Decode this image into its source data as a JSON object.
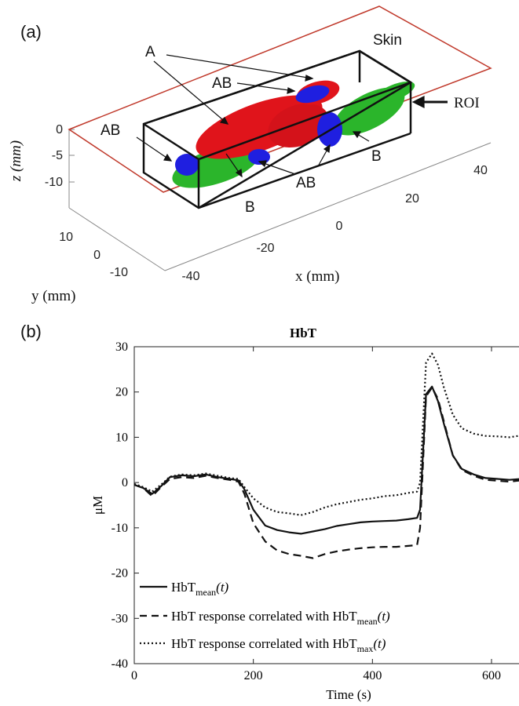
{
  "panel_a": {
    "label": "(a)",
    "skin_label": "Skin",
    "roi_label": "ROI",
    "region_labels": [
      "A",
      "AB",
      "AB",
      "AB",
      "B",
      "B"
    ],
    "z_axis": {
      "label": "z (mm)",
      "ticks": [
        "0",
        "-5",
        "-10"
      ]
    },
    "y_axis": {
      "label": "y (mm)",
      "ticks": [
        "10",
        "0",
        "-10"
      ]
    },
    "x_axis": {
      "label": "x (mm)",
      "ticks": [
        "-40",
        "-20",
        "0",
        "20",
        "40"
      ]
    },
    "colors": {
      "A": "#e0141b",
      "AB": "#1f1fe0",
      "B": "#2bb52b",
      "skin": "#c0392b",
      "roi": "#111111"
    }
  },
  "panel_b": {
    "label": "(b)",
    "legend": [
      {
        "name": "HbT",
        "sub": "mean",
        "suffix": "(t)",
        "style": "solid"
      },
      {
        "name": "HbT response correlated with HbT",
        "sub": "mean",
        "suffix": "(t)",
        "style": "dashed"
      },
      {
        "name": "HbT response correlated with HbT",
        "sub": "max",
        "suffix": "(t)",
        "style": "dotted"
      }
    ]
  },
  "chart_data": {
    "type": "line",
    "title": "HbT",
    "xlabel": "Time (s)",
    "ylabel": "μM",
    "xlim": [
      0,
      720
    ],
    "ylim": [
      -40,
      30
    ],
    "xticks": [
      0,
      200,
      400,
      600
    ],
    "yticks": [
      30,
      20,
      10,
      0,
      -10,
      -20,
      -30,
      -40
    ],
    "grid": false,
    "legend_position": "bottom-left",
    "series": [
      {
        "name": "HbT_mean(t)",
        "style": "solid",
        "x": [
          0,
          15,
          30,
          45,
          60,
          80,
          100,
          120,
          140,
          160,
          175,
          185,
          200,
          220,
          240,
          260,
          280,
          300,
          320,
          340,
          360,
          380,
          400,
          420,
          440,
          460,
          475,
          480,
          490,
          500,
          510,
          520,
          535,
          550,
          570,
          590,
          610,
          630,
          650,
          670,
          690,
          705,
          720
        ],
        "y": [
          -0.5,
          -1.2,
          -2.5,
          -0.8,
          1.2,
          1.6,
          1.4,
          1.8,
          1.2,
          0.8,
          0.5,
          -1.5,
          -6.0,
          -9.5,
          -10.5,
          -11.0,
          -11.3,
          -10.8,
          -10.3,
          -9.6,
          -9.2,
          -8.8,
          -8.6,
          -8.5,
          -8.4,
          -8.1,
          -7.8,
          -6.0,
          19.5,
          21.2,
          18.0,
          13.0,
          6.0,
          3.0,
          1.8,
          1.0,
          0.8,
          0.6,
          0.8,
          1.0,
          1.2,
          1.8,
          2.8
        ]
      },
      {
        "name": "HbT response correlated with HbT_mean(t)",
        "style": "dashed",
        "x": [
          0,
          15,
          30,
          45,
          60,
          80,
          100,
          120,
          140,
          160,
          175,
          185,
          200,
          220,
          240,
          260,
          280,
          300,
          320,
          340,
          360,
          380,
          400,
          420,
          440,
          460,
          475,
          480,
          490,
          500,
          510,
          520,
          535,
          550,
          570,
          590,
          610,
          630,
          650,
          670,
          690,
          705,
          720
        ],
        "y": [
          -0.5,
          -1.2,
          -3.0,
          -1.0,
          0.8,
          1.2,
          1.0,
          1.5,
          1.0,
          0.6,
          0.2,
          -2.5,
          -9.0,
          -13.0,
          -15.0,
          -15.8,
          -16.2,
          -16.7,
          -15.8,
          -15.2,
          -14.8,
          -14.5,
          -14.3,
          -14.2,
          -14.2,
          -14.0,
          -13.8,
          -10.0,
          19.0,
          21.0,
          18.5,
          13.5,
          6.0,
          2.8,
          1.5,
          0.6,
          0.4,
          0.2,
          0.5,
          0.6,
          0.8,
          1.5,
          2.8
        ]
      },
      {
        "name": "HbT response correlated with HbT_max(t)",
        "style": "dotted",
        "x": [
          0,
          15,
          30,
          45,
          60,
          80,
          100,
          120,
          140,
          160,
          175,
          185,
          200,
          220,
          240,
          260,
          280,
          300,
          320,
          340,
          360,
          380,
          400,
          420,
          440,
          460,
          475,
          480,
          490,
          500,
          510,
          520,
          535,
          550,
          570,
          590,
          610,
          630,
          650,
          670,
          690,
          705,
          720
        ],
        "y": [
          -0.3,
          -1.0,
          -2.0,
          -0.5,
          1.3,
          1.8,
          1.6,
          2.0,
          1.5,
          1.0,
          0.8,
          -1.0,
          -3.5,
          -5.5,
          -6.5,
          -6.8,
          -7.2,
          -6.5,
          -5.5,
          -4.8,
          -4.3,
          -3.8,
          -3.5,
          -3.0,
          -2.8,
          -2.3,
          -2.0,
          0.0,
          26.5,
          28.5,
          26.0,
          21.0,
          15.0,
          12.0,
          10.8,
          10.3,
          10.2,
          10.0,
          10.4,
          10.2,
          10.0,
          11.5,
          12.5
        ]
      }
    ]
  }
}
